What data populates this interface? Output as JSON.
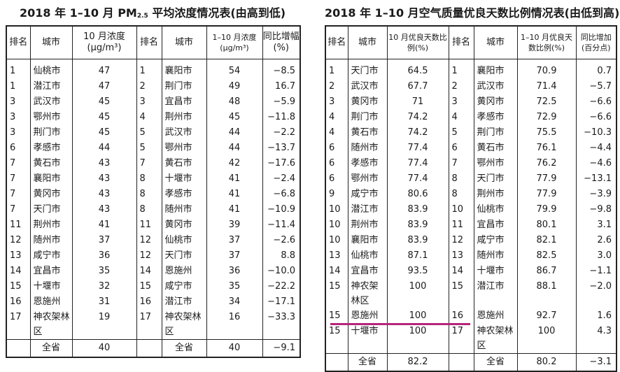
{
  "left_table": {
    "title_pre": "2018 年 1–10 月 PM",
    "title_sub": "2.5",
    "title_post": " 平均浓度情况表(由高到低)",
    "headers": [
      "排名",
      "城市",
      "10 月浓度(μg/m³)",
      "排名",
      "城市",
      "1–10 月浓度(μg/m³)",
      "同比增幅(%)"
    ],
    "rows": [
      [
        "1",
        "仙桃市",
        "47",
        "1",
        "襄阳市",
        "54",
        "−8.5"
      ],
      [
        "1",
        "潜江市",
        "47",
        "2",
        "荆门市",
        "49",
        "16.7"
      ],
      [
        "3",
        "武汉市",
        "45",
        "3",
        "宜昌市",
        "48",
        "−5.9"
      ],
      [
        "3",
        "鄂州市",
        "45",
        "4",
        "荆州市",
        "45",
        "−11.8"
      ],
      [
        "3",
        "荆门市",
        "45",
        "5",
        "武汉市",
        "44",
        "−2.2"
      ],
      [
        "6",
        "孝感市",
        "44",
        "5",
        "鄂州市",
        "44",
        "−13.7"
      ],
      [
        "7",
        "黄石市",
        "43",
        "7",
        "黄石市",
        "42",
        "−17.6"
      ],
      [
        "7",
        "襄阳市",
        "43",
        "8",
        "十堰市",
        "41",
        "−2.4"
      ],
      [
        "7",
        "黄冈市",
        "43",
        "8",
        "孝感市",
        "41",
        "−6.8"
      ],
      [
        "7",
        "天门市",
        "43",
        "8",
        "随州市",
        "41",
        "−10.9"
      ],
      [
        "11",
        "荆州市",
        "41",
        "11",
        "黄冈市",
        "39",
        "−11.4"
      ],
      [
        "12",
        "随州市",
        "37",
        "12",
        "仙桃市",
        "37",
        "−2.6"
      ],
      [
        "13",
        "咸宁市",
        "36",
        "12",
        "天门市",
        "37",
        "8.8"
      ],
      [
        "14",
        "宜昌市",
        "35",
        "14",
        "恩施州",
        "36",
        "−10.0"
      ],
      [
        "15",
        "十堰市",
        "32",
        "15",
        "咸宁市",
        "35",
        "−22.2"
      ],
      [
        "16",
        "恩施州",
        "31",
        "16",
        "潜江市",
        "34",
        "−17.1"
      ],
      [
        "17",
        "神农架林区",
        "19",
        "17",
        "神农架林区",
        "16",
        "−33.3"
      ]
    ],
    "total": {
      "label": "全省",
      "oct": "40",
      "label2": "全省",
      "ytd": "40",
      "change": "−9.1"
    }
  },
  "right_table": {
    "title": "2018 年 1–10 月空气质量优良天数比例情况表(由低到高)",
    "headers": [
      "排名",
      "城市",
      "10 月优良天数比例(%)",
      "排名",
      "城市",
      "1–10 月优良天数比例(%)",
      "同比增加(百分点)"
    ],
    "rows": [
      [
        "1",
        "天门市",
        "64.5",
        "1",
        "襄阳市",
        "70.9",
        "0.7"
      ],
      [
        "2",
        "武汉市",
        "67.7",
        "2",
        "武汉市",
        "71.4",
        "−5.7"
      ],
      [
        "3",
        "黄冈市",
        "71",
        "3",
        "黄冈市",
        "72.5",
        "−6.6"
      ],
      [
        "4",
        "荆门市",
        "74.2",
        "4",
        "孝感市",
        "72.9",
        "−6.6"
      ],
      [
        "4",
        "黄石市",
        "74.2",
        "5",
        "荆门市",
        "75.5",
        "−10.3"
      ],
      [
        "6",
        "随州市",
        "77.4",
        "6",
        "黄石市",
        "76.1",
        "−4.4"
      ],
      [
        "6",
        "孝感市",
        "77.4",
        "7",
        "鄂州市",
        "76.2",
        "−4.6"
      ],
      [
        "6",
        "鄂州市",
        "77.4",
        "8",
        "天门市",
        "77.9",
        "−13.1"
      ],
      [
        "9",
        "咸宁市",
        "80.6",
        "8",
        "荆州市",
        "77.9",
        "−3.9"
      ],
      [
        "10",
        "潜江市",
        "83.9",
        "10",
        "仙桃市",
        "79.9",
        "−9.8"
      ],
      [
        "10",
        "荆州市",
        "83.9",
        "11",
        "宜昌市",
        "80.1",
        "3.1"
      ],
      [
        "10",
        "襄阳市",
        "83.9",
        "12",
        "咸宁市",
        "82.1",
        "2.6"
      ],
      [
        "13",
        "仙桃市",
        "87.1",
        "13",
        "随州市",
        "82.5",
        "3.0"
      ],
      [
        "14",
        "宜昌市",
        "93.5",
        "14",
        "十堰市",
        "86.7",
        "−1.1"
      ],
      [
        "15",
        "神农架林区",
        "100",
        "15",
        "潜江市",
        "88.1",
        "−2.0"
      ],
      [
        "15",
        "恩施州",
        "100",
        "16",
        "恩施州",
        "92.7",
        "1.6"
      ],
      [
        "15",
        "十堰市",
        "100",
        "17",
        "神农架林区",
        "100",
        "4.3"
      ]
    ],
    "total": {
      "label": "全省",
      "oct": "82.2",
      "label2": "全省",
      "ytd": "80.2",
      "change": "−3.1"
    }
  }
}
